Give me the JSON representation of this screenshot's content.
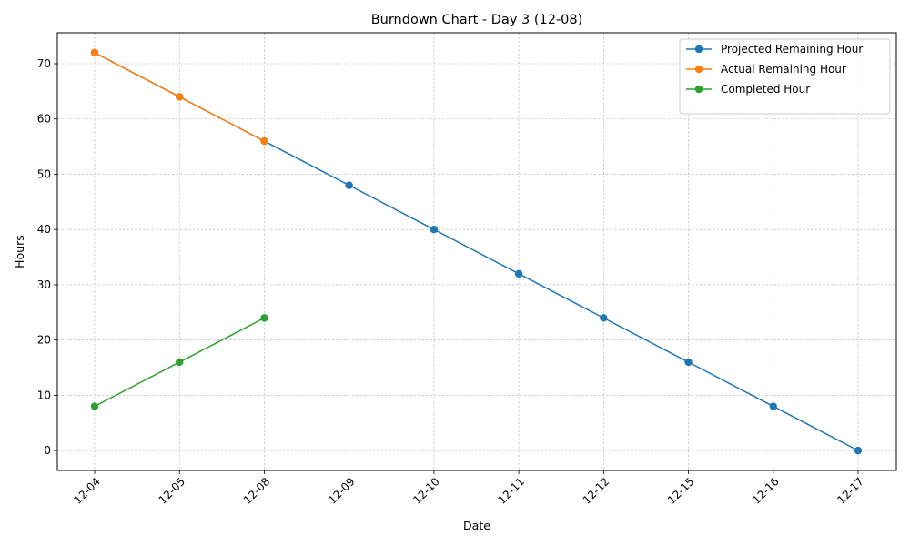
{
  "chart_data": {
    "type": "line",
    "title": "Burndown Chart - Day 3 (12-08)",
    "xlabel": "Date",
    "ylabel": "Hours",
    "categories": [
      "12-04",
      "12-05",
      "12-08",
      "12-09",
      "12-10",
      "12-11",
      "12-12",
      "12-15",
      "12-16",
      "12-17"
    ],
    "ylim": [
      -3.6,
      75.6
    ],
    "yticks": [
      0,
      10,
      20,
      30,
      40,
      50,
      60,
      70
    ],
    "grid": true,
    "legend_position": "top-right",
    "series": [
      {
        "name": "Projected Remaining Hour",
        "color": "#1f77b4",
        "values": [
          72,
          64,
          56,
          48,
          40,
          32,
          24,
          16,
          8,
          0
        ]
      },
      {
        "name": "Actual Remaining Hour",
        "color": "#ff7f0e",
        "values": [
          72,
          64,
          56,
          null,
          null,
          null,
          null,
          null,
          null,
          null
        ]
      },
      {
        "name": "Completed Hour",
        "color": "#2ca02c",
        "values": [
          8,
          16,
          24,
          null,
          null,
          null,
          null,
          null,
          null,
          null
        ]
      }
    ]
  }
}
